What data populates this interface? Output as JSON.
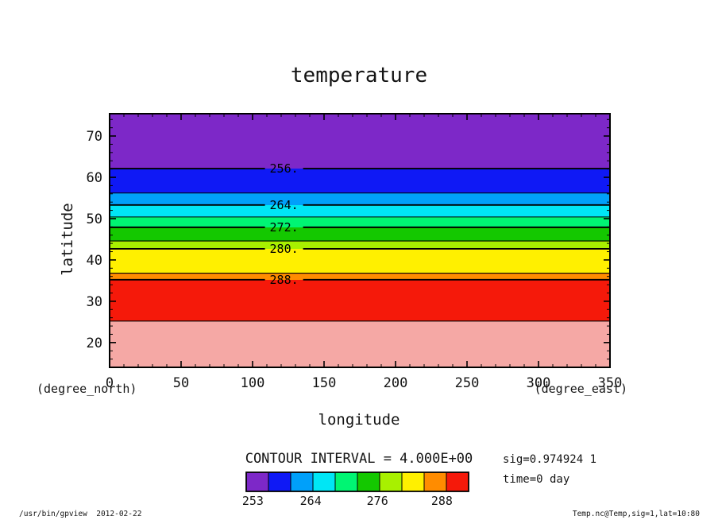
{
  "title": "temperature",
  "axes": {
    "x": {
      "label": "longitude",
      "unit": "(degree_east)"
    },
    "y": {
      "label": "latitude",
      "unit": "(degree_north)"
    }
  },
  "contour_info": "CONTOUR INTERVAL = 4.000E+00",
  "annotations": {
    "sig": "sig=0.974924 1",
    "time": "time=0 day"
  },
  "footer": {
    "left": "/usr/bin/gpview  2012-02-22",
    "right": "Temp.nc@Temp,sig=1,lat=10:80"
  },
  "chart_data": {
    "type": "heatmap",
    "variant": "filled contour plot",
    "title": "temperature",
    "xlabel": "longitude (degree_east)",
    "ylabel": "latitude (degree_north)",
    "xlim": [
      0,
      350
    ],
    "ylim": [
      14,
      75.4
    ],
    "x_ticks": [
      0,
      50,
      100,
      150,
      200,
      250,
      300,
      350
    ],
    "x_minor_step": 10,
    "y_ticks": [
      20,
      30,
      40,
      50,
      60,
      70
    ],
    "y_minor_step": 2,
    "contour_interval": 4.0,
    "label_lon": 122,
    "bands": [
      {
        "temp": "above 292",
        "lat_from": 14.0,
        "lat_to": 25.2,
        "color": "#F5A8A5"
      },
      {
        "temp": "288 to 292",
        "lat_from": 25.2,
        "lat_to": 35.2,
        "color": "#F5190A"
      },
      {
        "temp": "284 to 288",
        "lat_from": 35.2,
        "lat_to": 36.8,
        "color": "#FF8C00"
      },
      {
        "temp": "280 to 284",
        "lat_from": 36.8,
        "lat_to": 42.7,
        "color": "#FFF000"
      },
      {
        "temp": "276 to 280",
        "lat_from": 42.7,
        "lat_to": 44.6,
        "color": "#A8F000"
      },
      {
        "temp": "272 to 276",
        "lat_from": 44.6,
        "lat_to": 47.9,
        "color": "#14C800"
      },
      {
        "temp": "268 to 272",
        "lat_from": 47.9,
        "lat_to": 50.4,
        "color": "#00F573"
      },
      {
        "temp": "264 to 268",
        "lat_from": 50.4,
        "lat_to": 53.3,
        "color": "#00E6F5"
      },
      {
        "temp": "260 to 264",
        "lat_from": 53.3,
        "lat_to": 56.2,
        "color": "#00A0FA"
      },
      {
        "temp": "256 to 260",
        "lat_from": 56.2,
        "lat_to": 62.1,
        "color": "#0F19F5"
      },
      {
        "temp": "below 256",
        "lat_from": 62.1,
        "lat_to": 75.4,
        "color": "#7D28C8"
      }
    ],
    "contours": [
      {
        "level": 292,
        "lat": 25.2,
        "label": ""
      },
      {
        "level": 288,
        "lat": 35.2,
        "label": "288."
      },
      {
        "level": 284,
        "lat": 36.8,
        "label": ""
      },
      {
        "level": 280,
        "lat": 42.7,
        "label": "280."
      },
      {
        "level": 276,
        "lat": 44.6,
        "label": ""
      },
      {
        "level": 272,
        "lat": 47.9,
        "label": "272."
      },
      {
        "level": 268,
        "lat": 50.4,
        "label": ""
      },
      {
        "level": 264,
        "lat": 53.3,
        "label": "264."
      },
      {
        "level": 260,
        "lat": 56.2,
        "label": ""
      },
      {
        "level": 256,
        "lat": 62.1,
        "label": "256."
      }
    ],
    "colorbar": {
      "cells": [
        "#7D28C8",
        "#0F19F5",
        "#00A0FA",
        "#00E6F5",
        "#00F573",
        "#14C800",
        "#A8F000",
        "#FFF000",
        "#FF8C00",
        "#F5190A"
      ],
      "labels": [
        {
          "text": "253",
          "pos": 0.3
        },
        {
          "text": "264",
          "pos": 2.9
        },
        {
          "text": "276",
          "pos": 5.9
        },
        {
          "text": "288",
          "pos": 8.8
        }
      ]
    }
  }
}
